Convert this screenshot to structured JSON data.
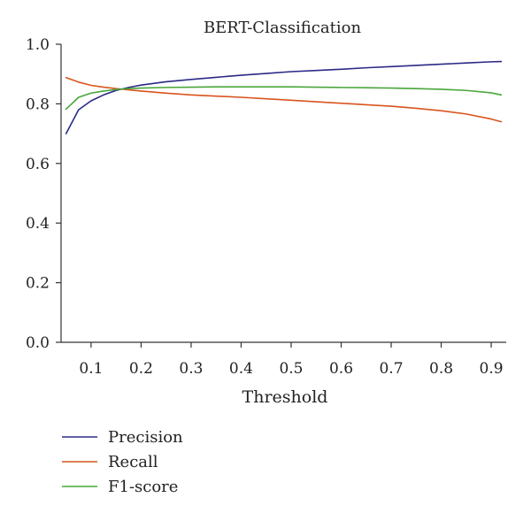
{
  "chart_data": {
    "type": "line",
    "title": "BERT-Classification",
    "xlabel": "Threshold",
    "ylabel": "",
    "xlim": [
      0.04,
      0.93
    ],
    "ylim": [
      0.0,
      1.0
    ],
    "x_ticks": [
      "0.1",
      "0.2",
      "0.3",
      "0.4",
      "0.5",
      "0.6",
      "0.7",
      "0.8",
      "0.9"
    ],
    "y_ticks": [
      "0.0",
      "0.2",
      "0.4",
      "0.6",
      "0.8",
      "1.0"
    ],
    "grid": false,
    "legend_position": "bottom-left",
    "x": [
      0.05,
      0.075,
      0.1,
      0.125,
      0.15,
      0.175,
      0.2,
      0.25,
      0.3,
      0.35,
      0.4,
      0.45,
      0.5,
      0.55,
      0.6,
      0.65,
      0.7,
      0.75,
      0.8,
      0.85,
      0.9,
      0.92
    ],
    "series": [
      {
        "name": "Precision",
        "color": "#2b2a86",
        "values": [
          0.7,
          0.78,
          0.81,
          0.83,
          0.845,
          0.855,
          0.863,
          0.874,
          0.882,
          0.889,
          0.896,
          0.902,
          0.908,
          0.912,
          0.916,
          0.921,
          0.925,
          0.929,
          0.933,
          0.937,
          0.941,
          0.942
        ]
      },
      {
        "name": "Recall",
        "color": "#d9541e",
        "values": [
          0.888,
          0.873,
          0.862,
          0.856,
          0.851,
          0.847,
          0.843,
          0.836,
          0.83,
          0.826,
          0.822,
          0.817,
          0.812,
          0.807,
          0.802,
          0.797,
          0.792,
          0.785,
          0.777,
          0.766,
          0.749,
          0.74
        ]
      },
      {
        "name": "F1-score",
        "color": "#4aa63b",
        "values": [
          0.782,
          0.822,
          0.836,
          0.843,
          0.848,
          0.851,
          0.853,
          0.855,
          0.856,
          0.857,
          0.857,
          0.857,
          0.857,
          0.856,
          0.855,
          0.854,
          0.853,
          0.851,
          0.849,
          0.845,
          0.837,
          0.83
        ]
      }
    ]
  }
}
